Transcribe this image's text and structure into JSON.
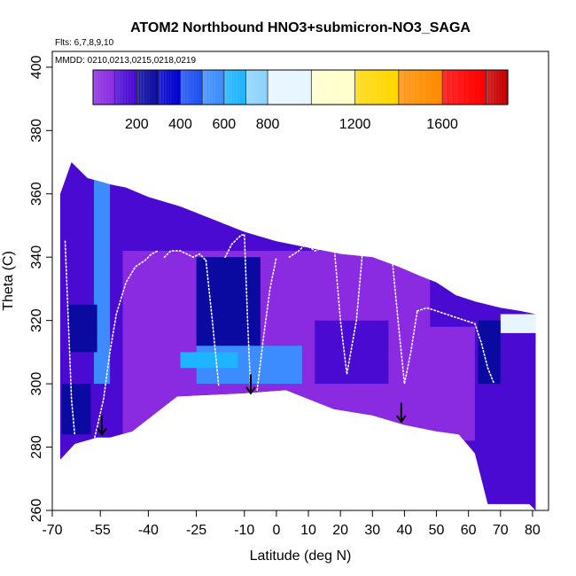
{
  "chart_data": {
    "type": "heatmap",
    "title": "ATOM2 Northbound HNO3+submicron-NO3_SAGA",
    "subtitle_flights": "Flts: 6,7,8,9,10",
    "subtitle_dates": "MMDD: 0210,0213,0215,0218,0219",
    "xlabel": "Latitude (deg N)",
    "ylabel": "Theta (C)",
    "xlim": [
      -70,
      85
    ],
    "ylim": [
      260,
      405
    ],
    "x_ticks": [
      -70,
      -55,
      -40,
      -25,
      -10,
      0,
      10,
      20,
      30,
      40,
      50,
      60,
      70,
      80
    ],
    "x_tick_labels": [
      "-70",
      "-55",
      "-40",
      "-25",
      "-10",
      "0",
      "10",
      "20",
      "30",
      "40",
      "50",
      "60",
      "70",
      "80"
    ],
    "y_ticks": [
      260,
      280,
      300,
      320,
      340,
      360,
      380,
      400
    ],
    "y_tick_labels": [
      "260",
      "280",
      "300",
      "320",
      "340",
      "360",
      "380",
      "400"
    ],
    "colorbar": {
      "range": [
        0,
        1900
      ],
      "tick_values": [
        200,
        400,
        600,
        800,
        1200,
        1600
      ],
      "tick_labels": [
        "200",
        "400",
        "600",
        "800",
        "1200",
        "1600"
      ],
      "segment_breaks": [
        0,
        100,
        200,
        300,
        400,
        500,
        600,
        700,
        800,
        1000,
        1200,
        1400,
        1600,
        1800,
        1900
      ],
      "colors": [
        "#8a2be2",
        "#4b0ad2",
        "#0a0aa0",
        "#0000cd",
        "#1e50f0",
        "#3c8cff",
        "#1eb4ff",
        "#8cd2ff",
        "#e6f5ff",
        "#ffffcc",
        "#ffd700",
        "#ff8c00",
        "#ff0000",
        "#c80000",
        "#a02828"
      ]
    },
    "coverage": {
      "top_theta": [
        [
          -67.5,
          360
        ],
        [
          -64,
          370
        ],
        [
          -59,
          365
        ],
        [
          -52,
          363
        ],
        [
          -47,
          362
        ],
        [
          -40,
          359
        ],
        [
          -30,
          356
        ],
        [
          -20,
          352
        ],
        [
          -10,
          348
        ],
        [
          0,
          345
        ],
        [
          10,
          343
        ],
        [
          20,
          341
        ],
        [
          30,
          340
        ],
        [
          38,
          337
        ],
        [
          45,
          334
        ],
        [
          50,
          332
        ],
        [
          56,
          328
        ],
        [
          62,
          326
        ],
        [
          70,
          324
        ],
        [
          76,
          323
        ],
        [
          81,
          322
        ]
      ],
      "bottom_theta": [
        [
          81,
          260
        ],
        [
          79,
          262
        ],
        [
          74,
          262
        ],
        [
          66,
          262
        ],
        [
          62,
          278
        ],
        [
          57,
          284
        ],
        [
          50,
          285
        ],
        [
          40,
          287
        ],
        [
          30,
          290
        ],
        [
          18,
          292
        ],
        [
          3,
          298
        ],
        [
          -10,
          297
        ],
        [
          -31,
          296
        ],
        [
          -45,
          285
        ],
        [
          -52,
          283
        ],
        [
          -56,
          283
        ],
        [
          -63,
          281
        ],
        [
          -67.5,
          276
        ]
      ]
    },
    "regions": [
      {
        "x": [
          -67.5,
          85
        ],
        "theta": [
          260,
          405
        ],
        "value": 140
      },
      {
        "x": [
          -48,
          62
        ],
        "theta": [
          282,
          342
        ],
        "value": 90
      },
      {
        "x": [
          -25,
          -5
        ],
        "theta": [
          300,
          340
        ],
        "value": 250
      },
      {
        "x": [
          -25,
          8
        ],
        "theta": [
          300,
          312
        ],
        "value": 550
      },
      {
        "x": [
          -30,
          -12
        ],
        "theta": [
          305,
          310
        ],
        "value": 650
      },
      {
        "x": [
          -57,
          -52
        ],
        "theta": [
          300,
          365
        ],
        "value": 500
      },
      {
        "x": [
          48,
          80
        ],
        "theta": [
          318,
          340
        ],
        "value": 170
      },
      {
        "x": [
          70,
          81
        ],
        "theta": [
          316,
          322
        ],
        "value": 800
      },
      {
        "x": [
          63,
          70
        ],
        "theta": [
          300,
          320
        ],
        "value": 220
      },
      {
        "x": [
          -65,
          -56
        ],
        "theta": [
          310,
          325
        ],
        "value": 260
      },
      {
        "x": [
          12,
          35
        ],
        "theta": [
          300,
          320
        ],
        "value": 120
      },
      {
        "x": [
          -67,
          -58
        ],
        "theta": [
          284,
          300
        ],
        "value": 230
      }
    ],
    "flight_tracks": [
      {
        "x": [
          -57,
          -54,
          -52,
          -50,
          -47,
          -44,
          -41,
          -39,
          -37
        ],
        "theta": [
          282,
          295,
          310,
          322,
          332,
          337,
          339,
          341,
          342
        ]
      },
      {
        "x": [
          -35,
          -33,
          -30,
          -28,
          -26,
          -24,
          -22
        ],
        "theta": [
          340,
          342,
          342,
          341,
          340,
          341,
          339
        ]
      },
      {
        "x": [
          -22,
          -20,
          -18
        ],
        "theta": [
          339,
          320,
          299
        ]
      },
      {
        "x": [
          -16,
          -14,
          -12,
          -11,
          -10
        ],
        "theta": [
          340,
          344,
          346,
          347,
          347
        ]
      },
      {
        "x": [
          -10,
          -9,
          -8
        ],
        "theta": [
          347,
          320,
          297
        ]
      },
      {
        "x": [
          -6,
          -4,
          -2,
          0
        ],
        "theta": [
          298,
          315,
          330,
          340
        ]
      },
      {
        "x": [
          4,
          7,
          9,
          12,
          15,
          18
        ],
        "theta": [
          340,
          342,
          344,
          342,
          343,
          344
        ]
      },
      {
        "x": [
          18,
          20,
          22,
          25,
          27
        ],
        "theta": [
          344,
          320,
          303,
          320,
          343
        ]
      },
      {
        "x": [
          27,
          30,
          33,
          36
        ],
        "theta": [
          343,
          343,
          342,
          341
        ]
      },
      {
        "x": [
          36,
          38,
          40,
          42,
          44
        ],
        "theta": [
          341,
          320,
          300,
          310,
          323
        ]
      },
      {
        "x": [
          44,
          47,
          50,
          53,
          56,
          59,
          62
        ],
        "theta": [
          323,
          324,
          323,
          322,
          321,
          320,
          319
        ]
      },
      {
        "x": [
          62,
          64,
          66,
          68
        ],
        "theta": [
          319,
          313,
          305,
          300
        ]
      },
      {
        "x": [
          -66,
          -65,
          -64,
          -63
        ],
        "theta": [
          345,
          320,
          295,
          284
        ]
      }
    ],
    "annotations": [
      {
        "type": "arrow",
        "x": -54.5,
        "theta": [
          290,
          284
        ]
      },
      {
        "type": "arrow",
        "x": -8,
        "theta": [
          303,
          297
        ]
      },
      {
        "type": "arrow",
        "x": 39,
        "theta": [
          294,
          288
        ]
      }
    ]
  }
}
